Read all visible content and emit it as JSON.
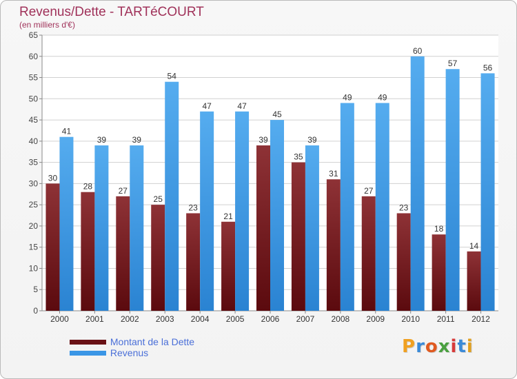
{
  "header": {
    "title": "Revenus/Dette - TARTéCOURT",
    "subtitle": "(en milliers d'€)"
  },
  "colors": {
    "title": "#a0325a",
    "dette_top": "#8e3236",
    "dette_bottom": "#5b0a0e",
    "revenus_top": "#55acef",
    "revenus_bottom": "#2a83d2",
    "grid": "#d0d0d0",
    "legend_text": "#4a6fd8"
  },
  "legend": {
    "items": [
      {
        "label": "Montant de la Dette",
        "color": "#6a1216"
      },
      {
        "label": "Revenus",
        "color": "#3a96e6"
      }
    ]
  },
  "logo": {
    "text": "Proxiti"
  },
  "chart_data": {
    "type": "bar",
    "title": "Revenus/Dette - TARTéCOURT",
    "subtitle": "(en milliers d'€)",
    "xlabel": "",
    "ylabel": "",
    "ylim": [
      0,
      65
    ],
    "ytick_step": 5,
    "grid": true,
    "categories": [
      "2000",
      "2001",
      "2002",
      "2003",
      "2004",
      "2005",
      "2006",
      "2007",
      "2008",
      "2009",
      "2010",
      "2011",
      "2012"
    ],
    "series": [
      {
        "name": "Montant de la Dette",
        "values": [
          30,
          28,
          27,
          25,
          23,
          21,
          39,
          35,
          31,
          27,
          23,
          18,
          14
        ]
      },
      {
        "name": "Revenus",
        "values": [
          41,
          39,
          39,
          54,
          47,
          47,
          45,
          39,
          49,
          49,
          60,
          57,
          56
        ]
      }
    ]
  }
}
